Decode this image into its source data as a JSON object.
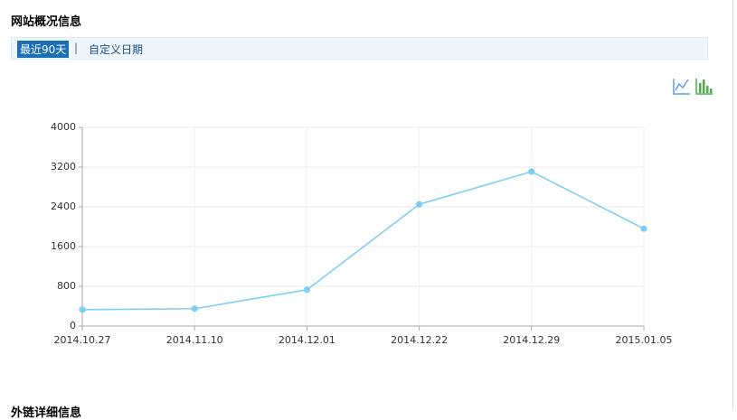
{
  "header": {
    "title": "网站概况信息"
  },
  "tabs": [
    "最近90天",
    "自定义日期"
  ],
  "chart_data": {
    "type": "line",
    "categories": [
      "2014.10.27",
      "2014.11.10",
      "2014.12.01",
      "2014.12.22",
      "2014.12.29",
      "2015.01.05"
    ],
    "series": [
      {
        "color": "#7ecef4",
        "values": [
          330,
          350,
          730,
          2450,
          3110,
          1960
        ]
      }
    ],
    "ylim": [
      0,
      4000
    ],
    "yticks": [
      0,
      800,
      1600,
      2400,
      3200,
      4000
    ],
    "grid": true
  },
  "section2": {
    "title": "外链详细信息"
  }
}
